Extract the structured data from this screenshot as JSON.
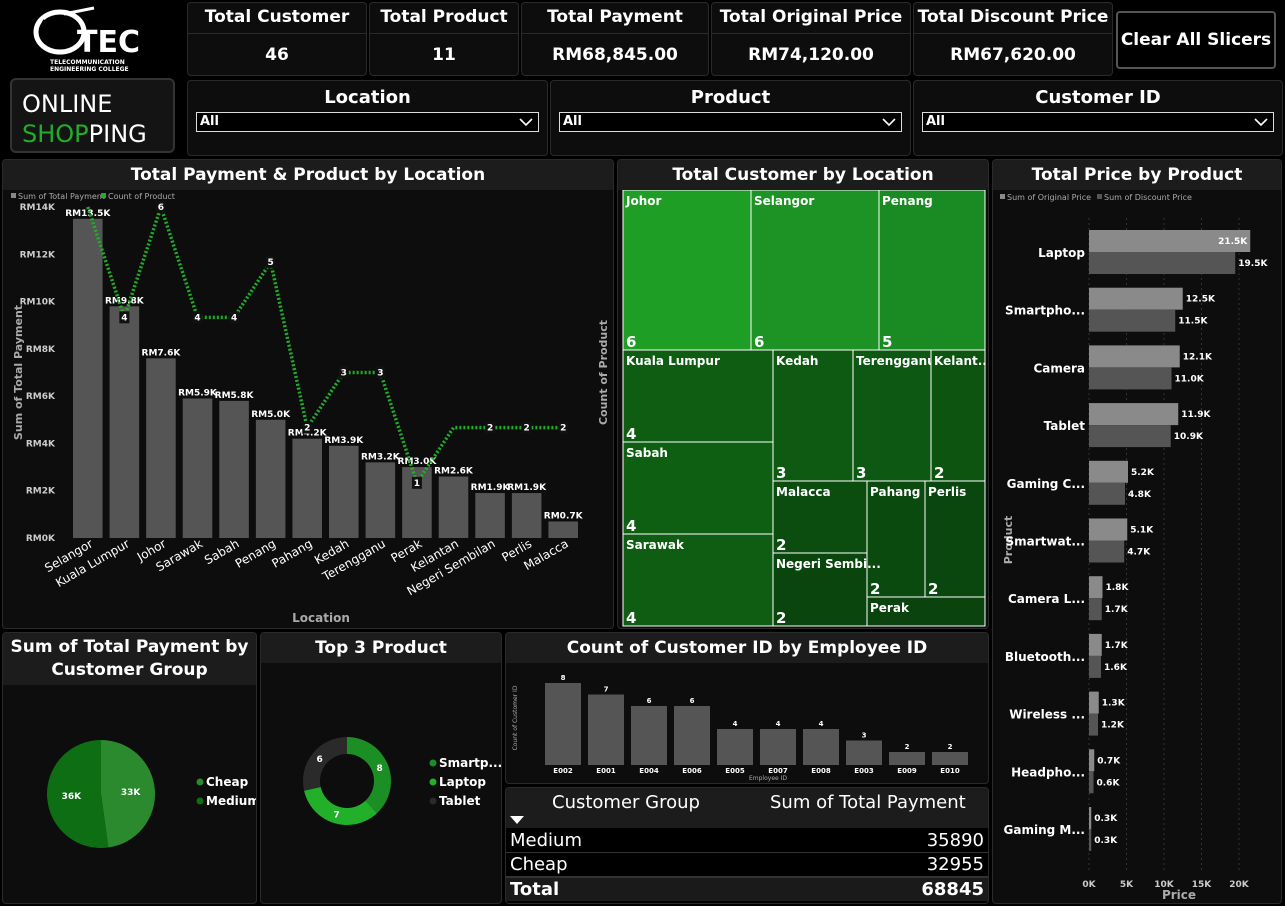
{
  "logo": {
    "text": "TEC",
    "line1": "TELECOMMUNICATION",
    "line2": "ENGINEERING COLLEGE"
  },
  "brand": {
    "word1": "ONLINE",
    "word2a": "SHOP",
    "word2b": "PING"
  },
  "kpis": [
    {
      "label": "Total Customer",
      "value": "46"
    },
    {
      "label": "Total Product",
      "value": "11"
    },
    {
      "label": "Total Payment",
      "value": "RM68,845.00"
    },
    {
      "label": "Total Original Price",
      "value": "RM74,120.00"
    },
    {
      "label": "Total Discount Price",
      "value": "RM67,620.00"
    }
  ],
  "clear_button": "Clear All Slicers",
  "slicers": [
    {
      "title": "Location",
      "value": "All"
    },
    {
      "title": "Product",
      "value": "All"
    },
    {
      "title": "Customer ID",
      "value": "All"
    }
  ],
  "icons": {
    "dropdown": "chevron-down-icon",
    "sort": "sort-down-icon",
    "logo": "tec-logo-icon"
  },
  "colors": {
    "accent": "#1fae2a",
    "bar": "#555555",
    "bar_light": "#8a8a8a"
  },
  "chart_data": [
    {
      "type": "bar",
      "title": "Total Payment & Product by Location",
      "xlabel": "Location",
      "ylabel": "Sum of Total Payment",
      "y2label": "Count of Product",
      "legend": [
        "Sum of Total Payment",
        "Count of Product"
      ],
      "ylim": [
        0,
        14000
      ],
      "y_ticks": [
        "RM0K",
        "RM2K",
        "RM4K",
        "RM6K",
        "RM8K",
        "RM10K",
        "RM12K",
        "RM14K"
      ],
      "categories": [
        "Selangor",
        "Kuala Lumpur",
        "Johor",
        "Sarawak",
        "Sabah",
        "Penang",
        "Pahang",
        "Kedah",
        "Terengganu",
        "Perak",
        "Kelantan",
        "Negeri Sembilan",
        "Perlis",
        "Malacca"
      ],
      "values": [
        13500,
        9800,
        7600,
        5900,
        5800,
        5000,
        4200,
        3900,
        3200,
        3000,
        2600,
        1900,
        1900,
        700
      ],
      "value_labels": [
        "RM13.5K",
        "RM9.8K",
        "RM7.6K",
        "RM5.9K",
        "RM5.8K",
        "RM5.0K",
        "RM4.2K",
        "RM3.9K",
        "RM3.2K",
        "RM3.0K",
        "RM2.6K",
        "RM1.9K",
        "RM1.9K",
        "RM0.7K"
      ],
      "line_values": [
        6,
        4,
        6,
        4,
        4,
        5,
        2,
        3,
        3,
        1,
        2,
        2,
        2,
        2
      ],
      "line_labels": [
        "",
        "4",
        "6",
        "4",
        "4",
        "5",
        "2",
        "3",
        "3",
        "1",
        "",
        "2",
        "2",
        "2"
      ]
    },
    {
      "type": "heatmap",
      "title": "Total Customer by Location",
      "cells": [
        {
          "name": "Johor",
          "value": 6
        },
        {
          "name": "Selangor",
          "value": 6
        },
        {
          "name": "Penang",
          "value": 5
        },
        {
          "name": "Kuala Lumpur",
          "value": 4
        },
        {
          "name": "Kedah",
          "value": 3
        },
        {
          "name": "Terengganu",
          "value": 3
        },
        {
          "name": "Kelant...",
          "value": 2
        },
        {
          "name": "Sabah",
          "value": 4
        },
        {
          "name": "Malacca",
          "value": 2
        },
        {
          "name": "Pahang",
          "value": 2
        },
        {
          "name": "Perlis",
          "value": 2
        },
        {
          "name": "Sarawak",
          "value": 4
        },
        {
          "name": "Negeri Sembi...",
          "value": 2
        },
        {
          "name": "Perak",
          "value": ""
        }
      ]
    },
    {
      "type": "bar",
      "orientation": "horizontal",
      "title": "Total Price by Product",
      "xlabel": "Price",
      "ylabel": "Product",
      "legend": [
        "Sum of Original Price",
        "Sum of Discount Price"
      ],
      "xlim": [
        0,
        21500
      ],
      "x_ticks": [
        "0K",
        "5K",
        "10K",
        "15K",
        "20K"
      ],
      "categories": [
        "Laptop",
        "Smartpho...",
        "Camera",
        "Tablet",
        "Gaming C...",
        "Smartwat...",
        "Camera L...",
        "Bluetooth...",
        "Wireless ...",
        "Headpho...",
        "Gaming M..."
      ],
      "series": [
        {
          "name": "Sum of Original Price",
          "values": [
            21500,
            12500,
            12100,
            11900,
            5200,
            5100,
            1800,
            1700,
            1300,
            700,
            300
          ],
          "labels": [
            "21.5K",
            "12.5K",
            "12.1K",
            "11.9K",
            "5.2K",
            "5.1K",
            "1.8K",
            "1.7K",
            "1.3K",
            "0.7K",
            "0.3K"
          ]
        },
        {
          "name": "Sum of Discount Price",
          "values": [
            19500,
            11500,
            11000,
            10900,
            4800,
            4700,
            1700,
            1600,
            1200,
            600,
            300
          ],
          "labels": [
            "19.5K",
            "11.5K",
            "11.0K",
            "10.9K",
            "4.8K",
            "4.7K",
            "1.7K",
            "1.6K",
            "1.2K",
            "0.6K",
            "0.3K"
          ]
        }
      ]
    },
    {
      "type": "pie",
      "title": "Sum of Total Payment by Customer Group",
      "categories": [
        "Cheap",
        "Medium"
      ],
      "values": [
        33,
        36
      ],
      "value_labels": [
        "33K",
        "36K"
      ]
    },
    {
      "type": "pie",
      "title": "Top 3 Product",
      "categories": [
        "Smartp...",
        "Laptop",
        "Tablet"
      ],
      "values": [
        8,
        7,
        6
      ]
    },
    {
      "type": "bar",
      "title": "Count of Customer ID by Employee ID",
      "xlabel": "Employee ID",
      "ylabel": "Count of Customer ID",
      "categories": [
        "E002",
        "E001",
        "E004",
        "E006",
        "E005",
        "E007",
        "E008",
        "E003",
        "E009",
        "E010"
      ],
      "values": [
        8,
        7,
        6,
        6,
        4,
        4,
        4,
        3,
        2,
        2
      ],
      "ylim": [
        0,
        8
      ]
    },
    {
      "type": "table",
      "columns": [
        "Customer Group",
        "Sum of Total Payment"
      ],
      "rows": [
        [
          "Medium",
          "35890"
        ],
        [
          "Cheap",
          "32955"
        ]
      ],
      "total": [
        "Total",
        "68845"
      ]
    }
  ]
}
